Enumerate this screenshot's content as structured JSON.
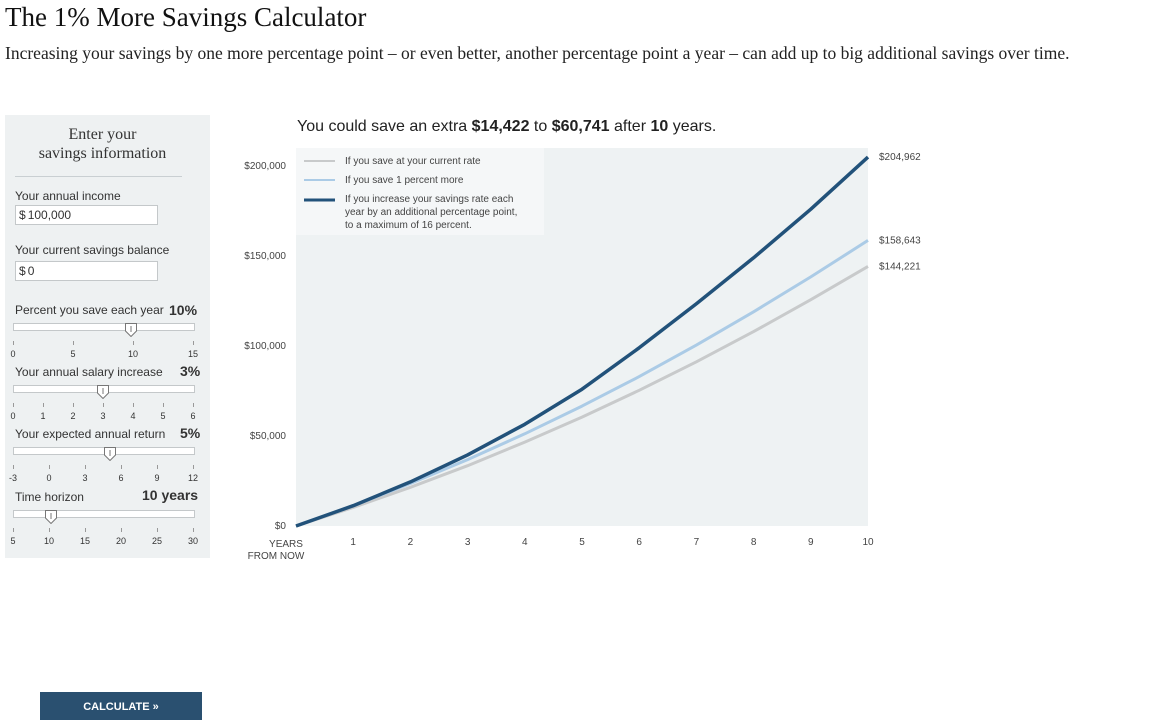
{
  "page": {
    "title": "The 1% More Savings Calculator",
    "intro": "Increasing your savings by one more percentage point – or even better, another percentage point a year – can add up to big additional savings over time."
  },
  "form": {
    "heading_line1": "Enter your",
    "heading_line2": "savings information",
    "income": {
      "label": "Your annual income",
      "currency": "$",
      "value": "100,000"
    },
    "balance": {
      "label": "Your current savings balance",
      "currency": "$",
      "value": "0"
    },
    "percent": {
      "label": "Percent you save each year",
      "value": "10%",
      "ticks": [
        "0",
        "5",
        "10",
        "15"
      ],
      "min": 0,
      "max": 15,
      "current": 10
    },
    "salary": {
      "label": "Your annual salary increase",
      "value": "3%",
      "ticks": [
        "0",
        "1",
        "2",
        "3",
        "4",
        "5",
        "6"
      ],
      "min": 0,
      "max": 6,
      "current": 3
    },
    "return": {
      "label": "Your expected annual return",
      "value": "5%",
      "ticks": [
        "-3",
        "0",
        "3",
        "6",
        "9",
        "12"
      ],
      "min": -3,
      "max": 12,
      "current": 5
    },
    "horizon": {
      "label": "Time horizon",
      "value": "10 years",
      "ticks": [
        "5",
        "10",
        "15",
        "20",
        "25",
        "30"
      ],
      "min": 5,
      "max": 30,
      "current": 10
    },
    "calculate_label": "CALCULATE »"
  },
  "headline": {
    "prefix": "You could save an extra ",
    "low": "$14,422",
    "mid": " to ",
    "high": "$60,741",
    "after": " after ",
    "years": "10",
    "suffix": " years."
  },
  "colors": {
    "current": "#c8cacb",
    "plus_one": "#abcbe6",
    "increase": "#22527a",
    "plot_bg": "#eef2f3"
  },
  "chart_data": {
    "type": "line",
    "x": [
      0,
      1,
      2,
      3,
      4,
      5,
      6,
      7,
      8,
      9,
      10
    ],
    "xticks": [
      "1",
      "2",
      "3",
      "4",
      "5",
      "6",
      "7",
      "8",
      "9",
      "10"
    ],
    "xlabel_line1": "YEARS",
    "xlabel_line2": "FROM NOW",
    "yticks": [
      "$0",
      "$50,000",
      "$100,000",
      "$150,000",
      "$200,000"
    ],
    "ytick_values": [
      0,
      50000,
      100000,
      150000,
      200000
    ],
    "ylim": [
      0,
      210000
    ],
    "series": [
      {
        "name": "If you save at your current rate",
        "end_label": "$144,221",
        "values": [
          0,
          10300,
          21500,
          33500,
          46600,
          60500,
          75400,
          91200,
          108000,
          125700,
          144221
        ]
      },
      {
        "name": "If you save 1 percent more",
        "end_label": "$158,643",
        "values": [
          0,
          11300,
          23600,
          36900,
          51200,
          66600,
          83000,
          100500,
          119000,
          138400,
          158643
        ]
      },
      {
        "name": "If you increase your savings rate each year by an additional percentage point, to a maximum of 16 percent.",
        "name_line1": "If you increase your savings rate each",
        "name_line2": "year by an additional percentage point,",
        "name_line3": "to a maximum of 16 percent.",
        "end_label": "$204,962",
        "values": [
          0,
          11300,
          24500,
          39500,
          56500,
          76000,
          99000,
          123500,
          149000,
          176000,
          204962
        ]
      }
    ],
    "legend": "top-left",
    "grid": false
  }
}
